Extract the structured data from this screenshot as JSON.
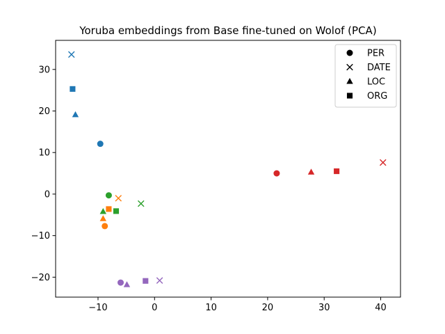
{
  "chart_data": {
    "type": "scatter",
    "title": "Yoruba embeddings from Base fine-tuned on Wolof (PCA)",
    "xlabel": "",
    "ylabel": "",
    "xlim": [
      -17.5,
      43.5
    ],
    "ylim": [
      -24.8,
      37
    ],
    "xticks": [
      -10,
      0,
      10,
      20,
      30,
      40
    ],
    "yticks": [
      -20,
      -10,
      0,
      10,
      20,
      30
    ],
    "xtick_labels": [
      "−10",
      "0",
      "10",
      "20",
      "30",
      "40"
    ],
    "ytick_labels": [
      "−20",
      "−10",
      "0",
      "10",
      "20",
      "30"
    ],
    "grid": false,
    "legend": {
      "position": "top-right",
      "entries": [
        {
          "label": "PER",
          "marker": "circle"
        },
        {
          "label": "DATE",
          "marker": "x"
        },
        {
          "label": "LOC",
          "marker": "triangle"
        },
        {
          "label": "ORG",
          "marker": "square"
        }
      ]
    },
    "points": [
      {
        "x": -14.7,
        "y": 33.6,
        "marker": "x",
        "color": "#1f77b4"
      },
      {
        "x": -14.5,
        "y": 25.3,
        "marker": "square",
        "color": "#1f77b4"
      },
      {
        "x": -14.0,
        "y": 19.1,
        "marker": "triangle",
        "color": "#1f77b4"
      },
      {
        "x": -9.6,
        "y": 12.1,
        "marker": "circle",
        "color": "#1f77b4"
      },
      {
        "x": 21.6,
        "y": 5.0,
        "marker": "circle",
        "color": "#d62728"
      },
      {
        "x": 27.7,
        "y": 5.3,
        "marker": "triangle",
        "color": "#d62728"
      },
      {
        "x": 32.2,
        "y": 5.5,
        "marker": "square",
        "color": "#d62728"
      },
      {
        "x": 40.4,
        "y": 7.6,
        "marker": "x",
        "color": "#d62728"
      },
      {
        "x": -8.1,
        "y": -0.3,
        "marker": "circle",
        "color": "#2ca02c"
      },
      {
        "x": -2.4,
        "y": -2.3,
        "marker": "x",
        "color": "#2ca02c"
      },
      {
        "x": -9.1,
        "y": -4.2,
        "marker": "triangle",
        "color": "#2ca02c"
      },
      {
        "x": -6.8,
        "y": -4.1,
        "marker": "square",
        "color": "#2ca02c"
      },
      {
        "x": -6.4,
        "y": -1.0,
        "marker": "x",
        "color": "#ff7f0e"
      },
      {
        "x": -8.1,
        "y": -3.6,
        "marker": "square",
        "color": "#ff7f0e"
      },
      {
        "x": -9.1,
        "y": -5.9,
        "marker": "triangle",
        "color": "#ff7f0e"
      },
      {
        "x": -8.8,
        "y": -7.7,
        "marker": "circle",
        "color": "#ff7f0e"
      },
      {
        "x": -6.0,
        "y": -21.3,
        "marker": "circle",
        "color": "#9467bd"
      },
      {
        "x": -4.9,
        "y": -21.8,
        "marker": "triangle",
        "color": "#9467bd"
      },
      {
        "x": -1.6,
        "y": -20.9,
        "marker": "square",
        "color": "#9467bd"
      },
      {
        "x": 0.9,
        "y": -20.8,
        "marker": "x",
        "color": "#9467bd"
      }
    ]
  }
}
